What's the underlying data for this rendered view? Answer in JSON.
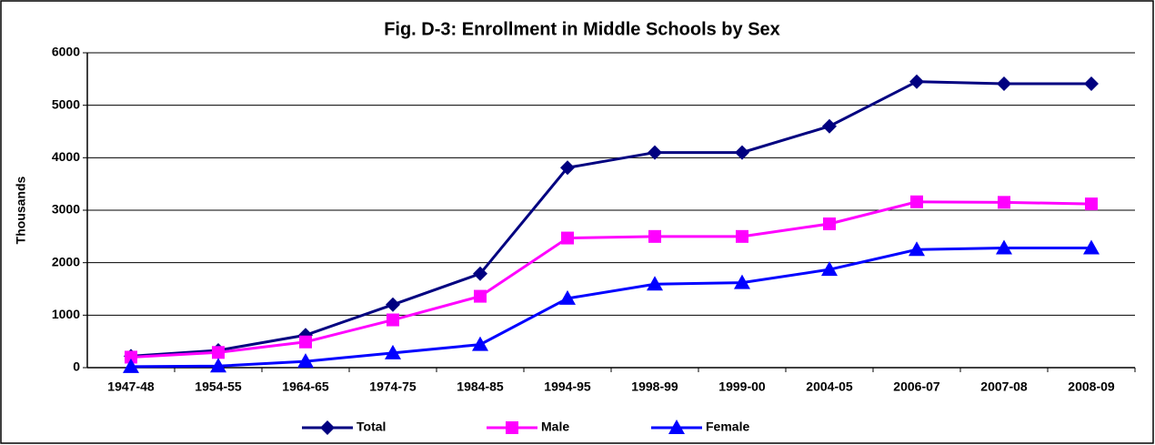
{
  "chart_data": {
    "type": "line",
    "title": "Fig. D-3: Enrollment in Middle Schools by Sex",
    "y_label": "Thousands",
    "categories": [
      "1947-48",
      "1954-55",
      "1964-65",
      "1974-75",
      "1984-85",
      "1994-95",
      "1998-99",
      "1999-00",
      "2004-05",
      "2006-07",
      "2007-08",
      "2008-09"
    ],
    "series": [
      {
        "name": "Total",
        "color": "#000080",
        "marker": "diamond",
        "values": [
          220,
          330,
          620,
          1200,
          1790,
          3810,
          4100,
          4100,
          4600,
          5450,
          5410,
          5410
        ]
      },
      {
        "name": "Male",
        "color": "#ff00ff",
        "marker": "square",
        "values": [
          200,
          290,
          490,
          910,
          1360,
          2470,
          2500,
          2500,
          2740,
          3160,
          3150,
          3120
        ]
      },
      {
        "name": "Female",
        "color": "#0000ff",
        "marker": "triangle",
        "values": [
          20,
          30,
          120,
          280,
          440,
          1320,
          1590,
          1620,
          1870,
          2250,
          2280,
          2280
        ]
      }
    ],
    "ylim": [
      0,
      6000
    ],
    "yticks": [
      0,
      1000,
      2000,
      3000,
      4000,
      5000,
      6000
    ],
    "grid": true,
    "legend": "bottom"
  }
}
